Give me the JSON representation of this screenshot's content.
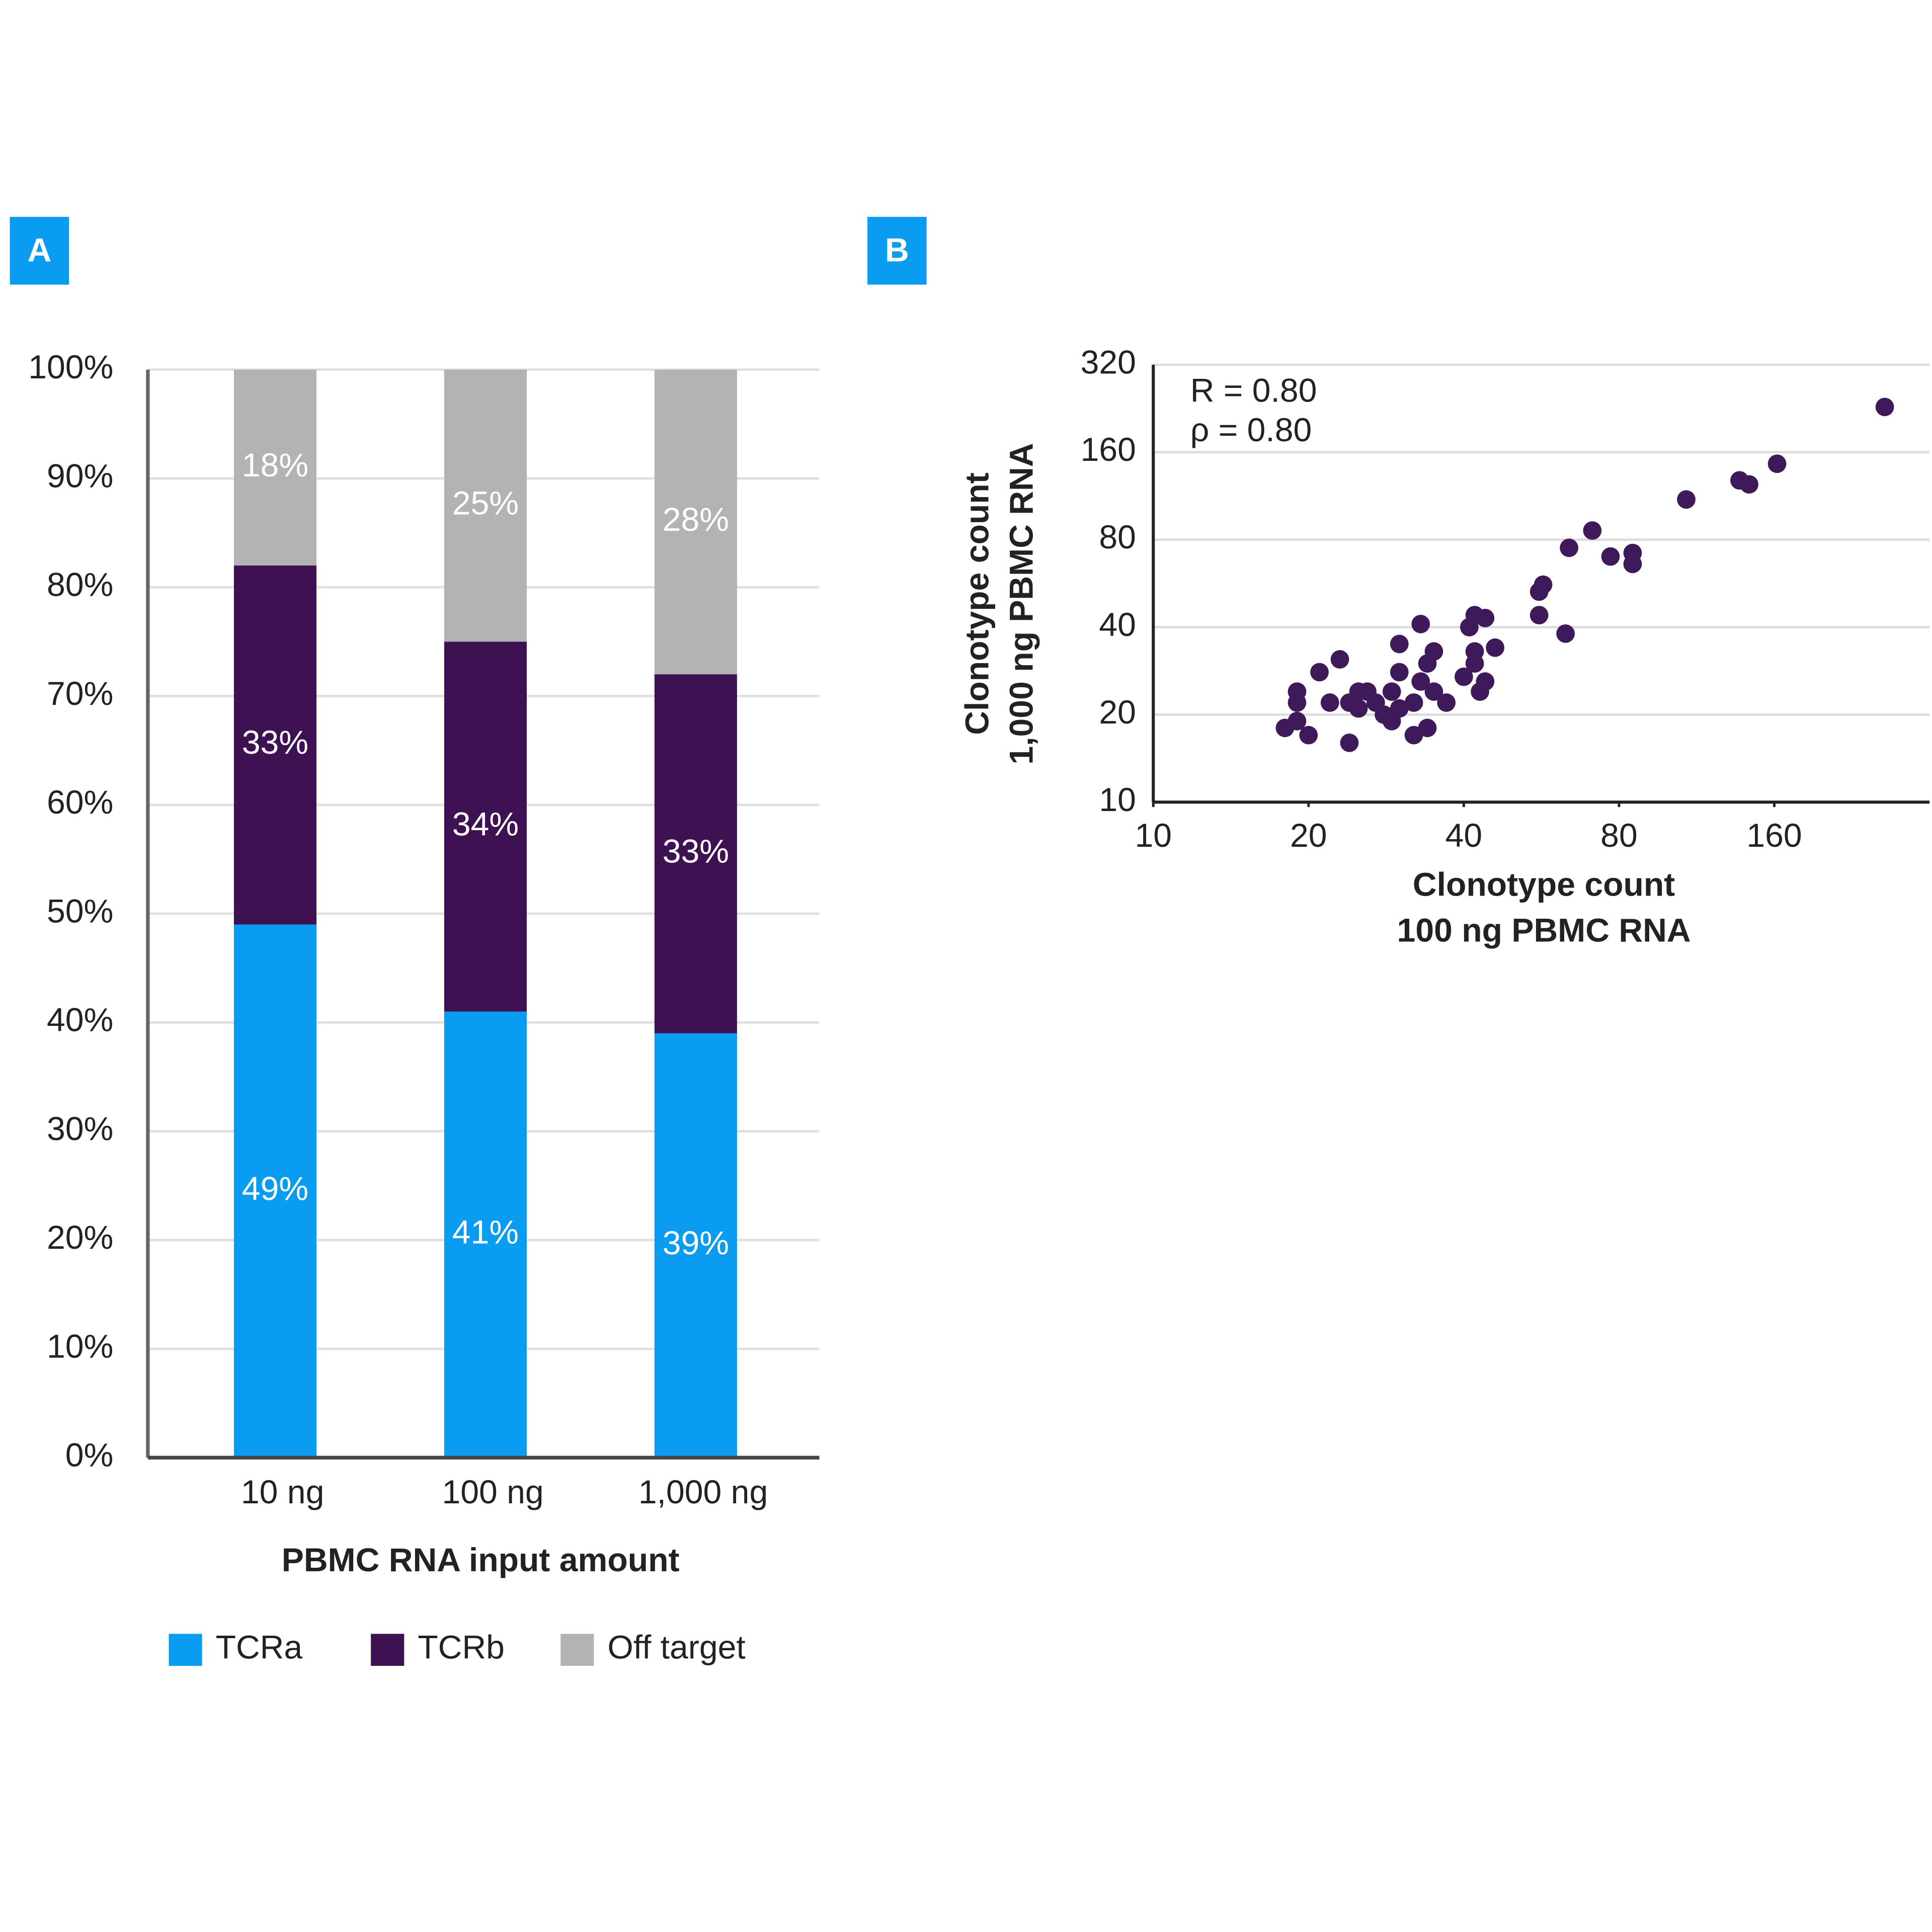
{
  "chart_data": [
    {
      "type": "stacked_bar",
      "panel_label": "A",
      "categories": [
        "10 ng",
        "100 ng",
        "1,000 ng"
      ],
      "series": [
        {
          "name": "TCRa",
          "color": "#0a9cf0",
          "values": [
            49,
            41,
            39
          ],
          "value_labels": [
            "49%",
            "41%",
            "39%"
          ]
        },
        {
          "name": "TCRb",
          "color": "#3d1152",
          "values": [
            33,
            34,
            33
          ],
          "value_labels": [
            "33%",
            "34%",
            "33%"
          ]
        },
        {
          "name": "Off target",
          "color": "#b3b3b3",
          "values": [
            18,
            25,
            28
          ],
          "value_labels": [
            "18%",
            "25%",
            "28%"
          ]
        }
      ],
      "xlabel": "PBMC RNA input amount",
      "ylim": [
        0,
        100
      ],
      "yticks": [
        {
          "value": 0,
          "label": "0%"
        },
        {
          "value": 10,
          "label": "10%"
        },
        {
          "value": 20,
          "label": "20%"
        },
        {
          "value": 30,
          "label": "30%"
        },
        {
          "value": 40,
          "label": "40%"
        },
        {
          "value": 50,
          "label": "50%"
        },
        {
          "value": 60,
          "label": "60%"
        },
        {
          "value": 70,
          "label": "70%"
        },
        {
          "value": 80,
          "label": "80%"
        },
        {
          "value": 90,
          "label": "90%"
        },
        {
          "value": 100,
          "label": "100%"
        }
      ],
      "grid": true,
      "legend": "bottom"
    },
    {
      "type": "scatter",
      "panel_label": "B",
      "xlabel": [
        "Clonotype count",
        "100 ng PBMC RNA"
      ],
      "ylabel": [
        "Clonotype count",
        "1,000 ng PBMC RNA"
      ],
      "annotations": [
        "R = 0.80",
        "ρ = 0.80"
      ],
      "xscale": "log",
      "yscale": "log",
      "color": "#3f1a5a",
      "xlim": [
        10,
        320
      ],
      "ylim": [
        10,
        320
      ],
      "xticks": [
        10,
        20,
        40,
        80,
        160
      ],
      "yticks": [
        10,
        20,
        40,
        80,
        160,
        320
      ],
      "grid": true,
      "x": [
        262,
        162,
        137,
        143,
        108,
        71,
        64,
        77,
        85,
        85,
        57,
        56,
        56,
        63,
        46,
        42,
        44,
        41,
        33,
        42,
        42,
        40,
        44,
        43,
        35,
        34,
        30,
        30,
        33,
        35,
        37,
        32,
        29,
        27,
        29,
        30,
        34,
        32,
        23,
        21,
        25,
        25,
        24,
        22,
        24,
        19,
        19,
        18,
        20,
        19,
        26,
        28
      ],
      "y": [
        229,
        146,
        128,
        124,
        110,
        86,
        75,
        70,
        72,
        66,
        56,
        53,
        44,
        38,
        34,
        44,
        43,
        40,
        41,
        33,
        30,
        27,
        26,
        24,
        33,
        30,
        35,
        28,
        26,
        24,
        22,
        22,
        24,
        22,
        19,
        21,
        18,
        17,
        31,
        28,
        24,
        21,
        22,
        22,
        16,
        24,
        22,
        18,
        17,
        19,
        24,
        20
      ]
    }
  ]
}
